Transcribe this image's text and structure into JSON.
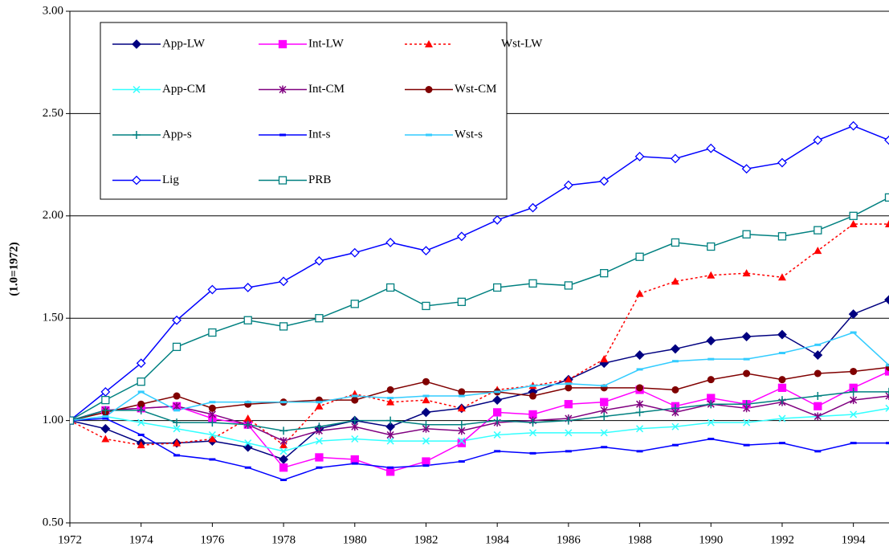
{
  "chart_data": {
    "type": "line",
    "ylabel": "(1.0=1972)",
    "x": [
      1972,
      1973,
      1974,
      1975,
      1976,
      1977,
      1978,
      1979,
      1980,
      1981,
      1982,
      1983,
      1984,
      1985,
      1986,
      1987,
      1988,
      1989,
      1990,
      1991,
      1992,
      1993,
      1994,
      1995
    ],
    "xlim": [
      1972,
      1995
    ],
    "xticks": [
      1972,
      1974,
      1976,
      1978,
      1980,
      1982,
      1984,
      1986,
      1988,
      1990,
      1992,
      1994
    ],
    "ylim": [
      0.5,
      3
    ],
    "yticks": [
      {
        "value": 0.5,
        "label": "0.50"
      },
      {
        "value": 1,
        "label": "1.00"
      },
      {
        "value": 1.5,
        "label": "1.50"
      },
      {
        "value": 2,
        "label": "2.00"
      },
      {
        "value": 2.5,
        "label": "2.50"
      },
      {
        "value": 3,
        "label": "3.00"
      }
    ],
    "grid": true,
    "legend": "upper-left",
    "series": [
      {
        "name": "App-LW",
        "color": "#000080",
        "marker": "diamond",
        "values": [
          1.0,
          0.96,
          0.89,
          0.89,
          0.9,
          0.87,
          0.81,
          0.96,
          1.0,
          0.97,
          1.04,
          1.06,
          1.1,
          1.14,
          1.2,
          1.28,
          1.32,
          1.35,
          1.39,
          1.41,
          1.42,
          1.32,
          1.52,
          1.59
        ]
      },
      {
        "name": "Int-LW",
        "color": "#ff00ff",
        "marker": "square",
        "values": [
          1.0,
          1.05,
          1.06,
          1.07,
          1.01,
          0.98,
          0.77,
          0.82,
          0.81,
          0.75,
          0.8,
          0.89,
          1.04,
          1.03,
          1.08,
          1.09,
          1.15,
          1.07,
          1.11,
          1.08,
          1.16,
          1.07,
          1.16,
          1.24
        ]
      },
      {
        "name": "Wst-LW",
        "color": "#ff0000",
        "marker": "triangle",
        "dashed": true,
        "values": [
          1.0,
          0.91,
          0.88,
          0.89,
          0.91,
          1.01,
          0.88,
          1.07,
          1.13,
          1.09,
          1.1,
          1.06,
          1.15,
          1.17,
          1.2,
          1.3,
          1.62,
          1.68,
          1.71,
          1.72,
          1.7,
          1.83,
          1.96,
          1.96
        ]
      },
      {
        "name": "App-CM",
        "color": "#33ffff",
        "marker": "x",
        "values": [
          1.0,
          1.02,
          0.99,
          0.96,
          0.93,
          0.89,
          0.85,
          0.9,
          0.91,
          0.9,
          0.9,
          0.9,
          0.93,
          0.94,
          0.94,
          0.94,
          0.96,
          0.97,
          0.99,
          0.99,
          1.01,
          1.02,
          1.03,
          1.06
        ]
      },
      {
        "name": "Int-CM",
        "color": "#800080",
        "marker": "star",
        "values": [
          1.0,
          1.05,
          1.06,
          1.07,
          1.03,
          0.98,
          0.9,
          0.95,
          0.97,
          0.93,
          0.96,
          0.95,
          0.99,
          1.0,
          1.01,
          1.05,
          1.08,
          1.04,
          1.08,
          1.06,
          1.09,
          1.02,
          1.1,
          1.12
        ]
      },
      {
        "name": "Wst-CM",
        "color": "#800000",
        "marker": "circle",
        "values": [
          1.0,
          1.04,
          1.08,
          1.12,
          1.06,
          1.08,
          1.09,
          1.1,
          1.1,
          1.15,
          1.19,
          1.14,
          1.14,
          1.12,
          1.16,
          1.16,
          1.16,
          1.15,
          1.2,
          1.23,
          1.2,
          1.23,
          1.24,
          1.26
        ]
      },
      {
        "name": "App-s",
        "color": "#008080",
        "marker": "plus",
        "values": [
          1.0,
          1.05,
          1.05,
          0.99,
          0.99,
          0.98,
          0.95,
          0.97,
          1.0,
          1.0,
          0.98,
          0.98,
          1.0,
          0.99,
          1.0,
          1.02,
          1.04,
          1.06,
          1.08,
          1.08,
          1.1,
          1.12,
          1.14,
          1.14
        ]
      },
      {
        "name": "Int-s",
        "color": "#0000ff",
        "marker": "dash",
        "values": [
          1.0,
          1.01,
          0.93,
          0.83,
          0.81,
          0.77,
          0.71,
          0.77,
          0.79,
          0.77,
          0.78,
          0.8,
          0.85,
          0.84,
          0.85,
          0.87,
          0.85,
          0.88,
          0.91,
          0.88,
          0.89,
          0.85,
          0.89,
          0.89
        ]
      },
      {
        "name": "Wst-s",
        "color": "#33ccff",
        "marker": "dash",
        "values": [
          1.0,
          1.02,
          1.14,
          1.05,
          1.09,
          1.09,
          1.09,
          1.09,
          1.12,
          1.11,
          1.12,
          1.12,
          1.14,
          1.17,
          1.18,
          1.17,
          1.25,
          1.29,
          1.3,
          1.3,
          1.33,
          1.37,
          1.43,
          1.27
        ]
      },
      {
        "name": "Lig",
        "color": "#0000ff",
        "marker": "open-diamond",
        "values": [
          1.0,
          1.14,
          1.28,
          1.49,
          1.64,
          1.65,
          1.68,
          1.78,
          1.82,
          1.87,
          1.83,
          1.9,
          1.98,
          2.04,
          2.15,
          2.17,
          2.29,
          2.28,
          2.33,
          2.23,
          2.26,
          2.37,
          2.44,
          2.37
        ]
      },
      {
        "name": "PRB",
        "color": "#008080",
        "marker": "open-square",
        "values": [
          1.0,
          1.1,
          1.19,
          1.36,
          1.43,
          1.49,
          1.46,
          1.5,
          1.57,
          1.65,
          1.56,
          1.58,
          1.65,
          1.67,
          1.66,
          1.72,
          1.8,
          1.87,
          1.85,
          1.91,
          1.9,
          1.93,
          2.0,
          2.09
        ]
      }
    ]
  }
}
